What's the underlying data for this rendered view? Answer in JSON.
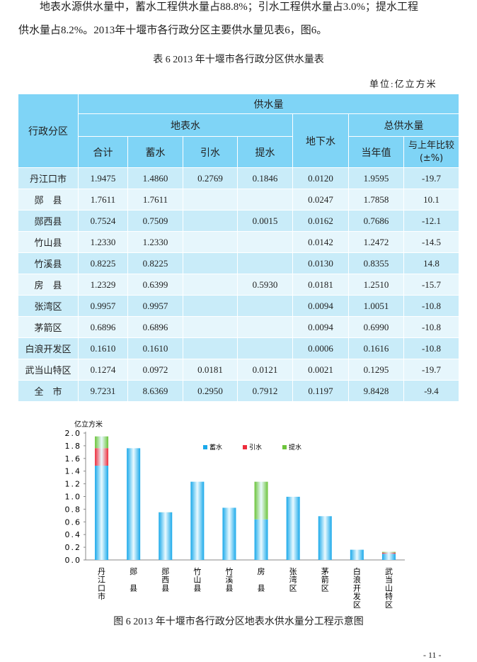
{
  "paragraph": {
    "line1": "地表水源供水量中，蓄水工程供水量占88.8%；引水工程供水量占3.0%；提水工程",
    "line2": "供水量占8.2%。2013年十堰市各行政分区主要供水量见表6，图6。"
  },
  "table": {
    "caption": "表 6  2013 年十堰市各行政分区供水量表",
    "unit": "单位:亿立方米",
    "headers": {
      "region": "行政分区",
      "supply": "供水量",
      "surface": "地表水",
      "ground": "地下水",
      "total": "总供水量",
      "sum": "合计",
      "storage": "蓄水",
      "diversion": "引水",
      "lifting": "提水",
      "current": "当年值",
      "compare": "与上年比较",
      "compare_unit": "(±%)"
    },
    "rows": [
      [
        "丹江口市",
        "1.9475",
        "1.4860",
        "0.2769",
        "0.1846",
        "0.0120",
        "1.9595",
        "-19.7"
      ],
      [
        "郧　县",
        "1.7611",
        "1.7611",
        "",
        "",
        "0.0247",
        "1.7858",
        "10.1"
      ],
      [
        "郧西县",
        "0.7524",
        "0.7509",
        "",
        "0.0015",
        "0.0162",
        "0.7686",
        "-12.1"
      ],
      [
        "竹山县",
        "1.2330",
        "1.2330",
        "",
        "",
        "0.0142",
        "1.2472",
        "-14.5"
      ],
      [
        "竹溪县",
        "0.8225",
        "0.8225",
        "",
        "",
        "0.0130",
        "0.8355",
        "14.8"
      ],
      [
        "房　县",
        "1.2329",
        "0.6399",
        "",
        "0.5930",
        "0.0181",
        "1.2510",
        "-15.7"
      ],
      [
        "张湾区",
        "0.9957",
        "0.9957",
        "",
        "",
        "0.0094",
        "1.0051",
        "-10.8"
      ],
      [
        "茅箭区",
        "0.6896",
        "0.6896",
        "",
        "",
        "0.0094",
        "0.6990",
        "-10.8"
      ],
      [
        "白浪开发区",
        "0.1610",
        "0.1610",
        "",
        "",
        "0.0006",
        "0.1616",
        "-10.8"
      ],
      [
        "武当山特区",
        "0.1274",
        "0.0972",
        "0.0181",
        "0.0121",
        "0.0021",
        "0.1295",
        "-19.7"
      ],
      [
        "全　市",
        "9.7231",
        "8.6369",
        "0.2950",
        "0.7912",
        "0.1197",
        "9.8428",
        "-9.4"
      ]
    ]
  },
  "chart_data": {
    "type": "bar",
    "stacked": true,
    "title": "图 6  2013 年十堰市各行政分区地表水供水量分工程示意图",
    "ylabel": "亿立方米",
    "ylim": [
      0,
      2.0
    ],
    "yticks": [
      "0.0",
      "0.2",
      "0.4",
      "0.6",
      "0.8",
      "1.0",
      "1.2",
      "1.4",
      "1.6",
      "1.8",
      "2.0"
    ],
    "categories": [
      "丹江口市",
      "郧　县",
      "郧西县",
      "竹山县",
      "竹溪县",
      "房　县",
      "张湾区",
      "茅箭区",
      "白浪开发区",
      "武当山特区"
    ],
    "series": [
      {
        "name": "蓄水",
        "color": "#1aa9ea",
        "values": [
          1.486,
          1.7611,
          0.7509,
          1.233,
          0.8225,
          0.6399,
          0.9957,
          0.6896,
          0.161,
          0.0972
        ]
      },
      {
        "name": "引水",
        "color": "#ee2c3c",
        "values": [
          0.2769,
          0,
          0,
          0,
          0,
          0,
          0,
          0,
          0,
          0.0181
        ]
      },
      {
        "name": "提水",
        "color": "#6cc43a",
        "values": [
          0.1846,
          0,
          0.0015,
          0,
          0,
          0.593,
          0,
          0,
          0,
          0.0121
        ]
      }
    ],
    "legend": "top-center"
  },
  "page_number": "- 11 -"
}
